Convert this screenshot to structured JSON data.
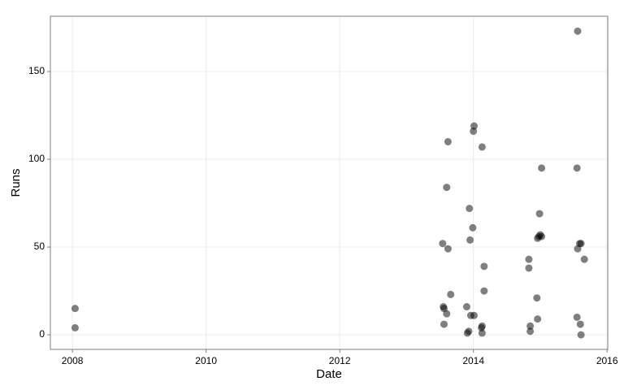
{
  "chart_data": {
    "type": "scatter",
    "x_label": "Date",
    "y_label": "Runs",
    "series": [
      {
        "color": "#000000",
        "x": [
          2008.04,
          2008.04,
          2013.54,
          2013.55,
          2013.56,
          2013.56,
          2013.6,
          2013.6,
          2013.62,
          2013.62,
          2013.66,
          2013.9,
          2013.91,
          2013.93,
          2013.94,
          2013.95,
          2013.96,
          2013.99,
          2014.0,
          2014.01,
          2014.01,
          2014.12,
          2014.13,
          2014.13,
          2014.13,
          2014.16,
          2014.16,
          2014.83,
          2014.83,
          2014.85,
          2014.85,
          2014.95,
          2014.96,
          2014.96,
          2014.98,
          2014.99,
          2015.0,
          2015.02,
          2015.02,
          2015.55,
          2015.55,
          2015.56,
          2015.56,
          2015.59,
          2015.61,
          2015.6,
          2015.61,
          2015.66
        ],
        "values": [
          15,
          4,
          52,
          16,
          15,
          6,
          12,
          84,
          110,
          49,
          23,
          16,
          1,
          2,
          72,
          54,
          11,
          61,
          116,
          119,
          11,
          4,
          1,
          5,
          107,
          39,
          25,
          43,
          38,
          5,
          2,
          21,
          9,
          55,
          56,
          69,
          57,
          56,
          95,
          10,
          95,
          173,
          49,
          52,
          52,
          6,
          0,
          43
        ]
      }
    ],
    "xlim": [
      2007.67,
      2016.01
    ],
    "xticks": [
      2008,
      2010,
      2012,
      2014,
      2016
    ],
    "ylim": [
      -8.3,
      181.5
    ],
    "yticks": [
      0,
      50,
      100,
      150
    ],
    "grid": true
  }
}
